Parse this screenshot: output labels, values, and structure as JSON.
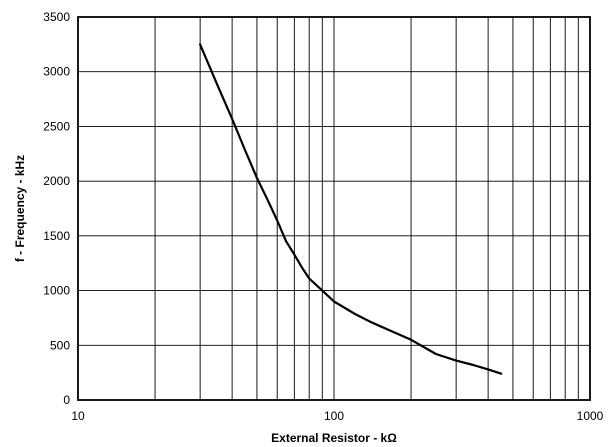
{
  "chart_data": {
    "type": "line",
    "title": "",
    "xlabel": "External Resistor - kΩ",
    "ylabel": "f - Frequency - kHz",
    "x_scale": "log",
    "xlim": [
      10,
      1000
    ],
    "ylim": [
      0,
      3500
    ],
    "x_ticks": [
      10,
      100,
      1000
    ],
    "x_tick_labels": [
      "10",
      "100",
      "1000"
    ],
    "y_ticks": [
      0,
      500,
      1000,
      1500,
      2000,
      2500,
      3000,
      3500
    ],
    "y_tick_labels": [
      "0",
      "500",
      "1000",
      "1500",
      "2000",
      "2500",
      "3000",
      "3500"
    ],
    "grid": true,
    "legend": "none",
    "line_color": "#000000",
    "series": [
      {
        "x": [
          30,
          35,
          40,
          45,
          50,
          55,
          60,
          65,
          70,
          75,
          80,
          90,
          100,
          120,
          140,
          160,
          200,
          250,
          300,
          350,
          400,
          450
        ],
        "y": [
          3250,
          2880,
          2570,
          2280,
          2030,
          1830,
          1640,
          1450,
          1330,
          1210,
          1110,
          1000,
          900,
          790,
          710,
          650,
          550,
          420,
          360,
          320,
          280,
          240
        ]
      }
    ]
  }
}
